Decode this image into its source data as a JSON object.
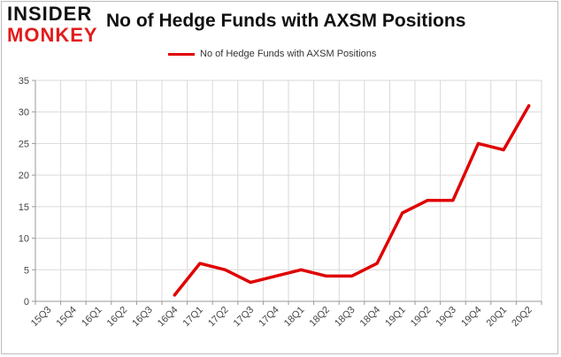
{
  "logo": {
    "top": "INSIDER",
    "bottom": "MONKEY"
  },
  "chart_data": {
    "type": "line",
    "title": "No of Hedge Funds with AXSM Positions",
    "xlabel": "",
    "ylabel": "",
    "ylim": [
      0,
      35
    ],
    "yticks": [
      0,
      5,
      10,
      15,
      20,
      25,
      30,
      35
    ],
    "grid": true,
    "legend_position": "top-center",
    "categories": [
      "15Q3",
      "15Q4",
      "16Q1",
      "16Q2",
      "16Q3",
      "16Q4",
      "17Q1",
      "17Q2",
      "17Q3",
      "17Q4",
      "18Q1",
      "18Q2",
      "18Q3",
      "18Q4",
      "19Q1",
      "19Q2",
      "19Q3",
      "19Q4",
      "20Q1",
      "20Q2"
    ],
    "series": [
      {
        "name": "No of Hedge Funds with AXSM Positions",
        "color": "#e00000",
        "values": [
          null,
          null,
          null,
          null,
          null,
          1,
          6,
          5,
          3,
          4,
          5,
          4,
          4,
          6,
          14,
          16,
          16,
          25,
          24,
          31
        ]
      }
    ]
  }
}
